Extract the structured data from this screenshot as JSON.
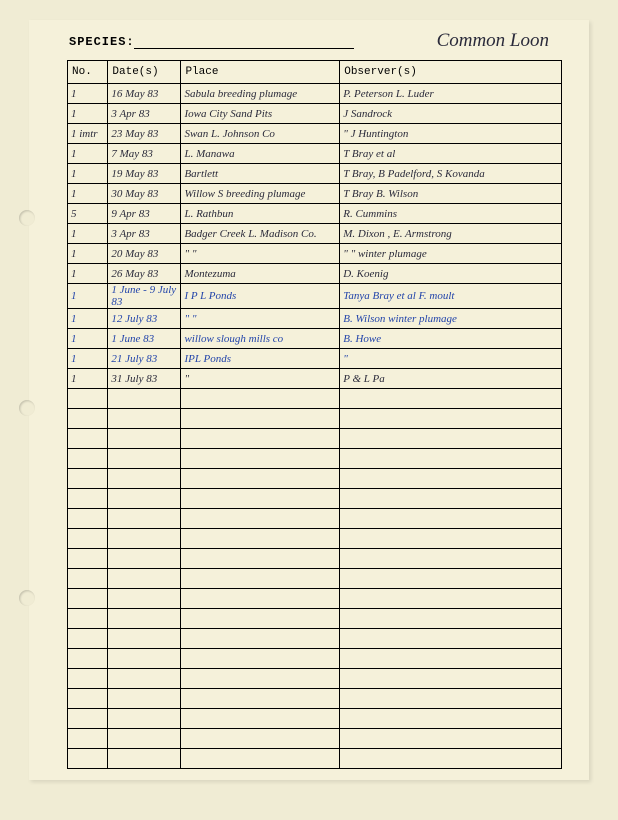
{
  "header": {
    "species_label": "SPECIES:",
    "species_value": "Common Loon"
  },
  "table": {
    "columns": {
      "no": "No.",
      "dates": "Date(s)",
      "place": "Place",
      "observers": "Observer(s)"
    },
    "rows": [
      {
        "no": "1",
        "date": "16 May 83",
        "place": "Sabula    breeding plumage",
        "obs": "P. Peterson  L. Luder",
        "ink": "black"
      },
      {
        "no": "1",
        "date": "3 Apr 83",
        "place": "Iowa City   Sand Pits",
        "obs": "J Sandrock",
        "ink": "black"
      },
      {
        "no": "1 imtr",
        "date": "23 May 83",
        "place": "Swan L.   Johnson Co",
        "obs": "\"        J Huntington",
        "ink": "black"
      },
      {
        "no": "1",
        "date": "7 May 83",
        "place": "L. Manawa",
        "obs": "T Bray  et al",
        "ink": "black"
      },
      {
        "no": "1",
        "date": "19 May 83",
        "place": "Bartlett",
        "obs": "T Bray, B Padelford, S Kovanda",
        "ink": "black"
      },
      {
        "no": "1",
        "date": "30 May 83",
        "place": "Willow S    breeding plumage",
        "obs": "T Bray   B. Wilson",
        "ink": "black"
      },
      {
        "no": "5",
        "date": "9 Apr 83",
        "place": "L. Rathbun",
        "obs": "R. Cummins",
        "ink": "black"
      },
      {
        "no": "1",
        "date": "3 Apr 83",
        "place": "Badger Creek L.  Madison Co.",
        "obs": "M. Dixon ,  E. Armstrong",
        "ink": "black"
      },
      {
        "no": "1",
        "date": "20 May 83",
        "place": "\"          \"",
        "obs": "\"        \"    winter plumage",
        "ink": "black"
      },
      {
        "no": "1",
        "date": "26 May 83",
        "place": "Montezuma",
        "obs": "D. Koenig",
        "ink": "black"
      },
      {
        "no": "1",
        "date": "1 June - 9 July 83",
        "place": "I P L Ponds",
        "obs": "Tanya Bray   et al   F. moult",
        "ink": "blue"
      },
      {
        "no": "1",
        "date": "12 July 83",
        "place": "\"     \"",
        "obs": "B. Wilson     winter plumage",
        "ink": "blue"
      },
      {
        "no": "1",
        "date": "1 June 83",
        "place": "willow slough  mills co",
        "obs": "B. Howe",
        "ink": "blue"
      },
      {
        "no": "1",
        "date": "21 July 83",
        "place": "IPL  Ponds",
        "obs": "\"",
        "ink": "blue"
      },
      {
        "no": "1",
        "date": "31 July 83",
        "place": "\"",
        "obs": "P & L Pa",
        "ink": "black"
      }
    ],
    "empty_rows": 19
  }
}
